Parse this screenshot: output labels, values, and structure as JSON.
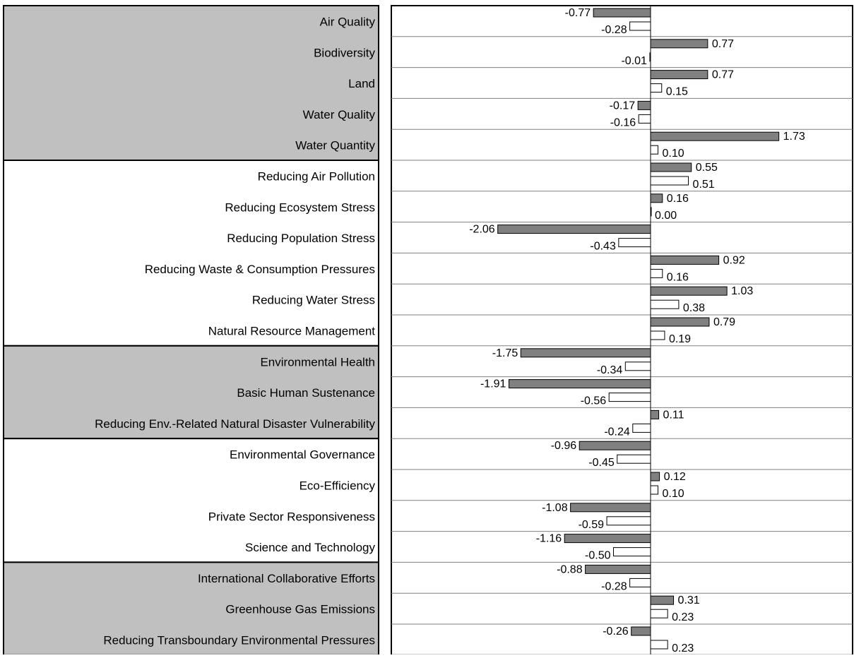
{
  "chart_data": {
    "type": "bar",
    "orientation": "horizontal",
    "legend": "none",
    "grid": false,
    "categories": [
      "Air Quality",
      "Biodiversity",
      "Land",
      "Water Quality",
      "Water Quantity",
      "Reducing Air Pollution",
      "Reducing Ecosystem Stress",
      "Reducing Population Stress",
      "Reducing Waste & Consumption Pressures",
      "Reducing Water Stress",
      "Natural Resource Management",
      "Environmental Health",
      "Basic Human Sustenance",
      "Reducing Env.-Related Natural Disaster Vulnerability",
      "Environmental Governance",
      "Eco-Efficiency",
      "Private Sector Responsiveness",
      "Science and Technology",
      "International Collaborative Efforts",
      "Greenhouse Gas Emissions",
      "Reducing Transboundary Environmental Pressures"
    ],
    "category_groups": [
      {
        "start": 0,
        "end": 4,
        "shaded": true
      },
      {
        "start": 5,
        "end": 10,
        "shaded": false
      },
      {
        "start": 11,
        "end": 13,
        "shaded": true
      },
      {
        "start": 14,
        "end": 17,
        "shaded": false
      },
      {
        "start": 18,
        "end": 20,
        "shaded": true
      }
    ],
    "series": [
      {
        "color": "#808080",
        "values": [
          -0.77,
          0.77,
          0.77,
          -0.17,
          1.73,
          0.55,
          0.16,
          -2.06,
          0.92,
          1.03,
          0.79,
          -1.75,
          -1.91,
          0.11,
          -0.96,
          0.12,
          -1.08,
          -1.16,
          -0.88,
          0.31,
          -0.26
        ],
        "labels": [
          "-0.77",
          "0.77",
          "0.77",
          "-0.17",
          "1.73",
          "0.55",
          "0.16",
          "-2.06",
          "0.92",
          "1.03",
          "0.79",
          "-1.75",
          "-1.91",
          "0.11",
          "-0.96",
          "0.12",
          "-1.08",
          "-1.16",
          "-0.88",
          "0.31",
          "-0.26"
        ]
      },
      {
        "color": "#ffffff",
        "values": [
          -0.28,
          -0.01,
          0.15,
          -0.16,
          0.1,
          0.51,
          0.0,
          -0.43,
          0.16,
          0.38,
          0.19,
          -0.34,
          -0.56,
          -0.24,
          -0.45,
          0.1,
          -0.59,
          -0.5,
          -0.28,
          0.23,
          0.23
        ],
        "labels": [
          "-0.28",
          "-0.01",
          "0.15",
          "-0.16",
          "0.10",
          "0.51",
          "0.00",
          "-0.43",
          "0.16",
          "0.38",
          "0.19",
          "-0.34",
          "-0.56",
          "-0.24",
          "-0.45",
          "0.10",
          "-0.59",
          "-0.50",
          "-0.28",
          "0.23",
          "0.23"
        ]
      }
    ],
    "xlim": [
      -2.6,
      2.75
    ],
    "colors": {
      "shade": "#c0c0c0",
      "border": "#000000",
      "separator": "#808080"
    }
  }
}
